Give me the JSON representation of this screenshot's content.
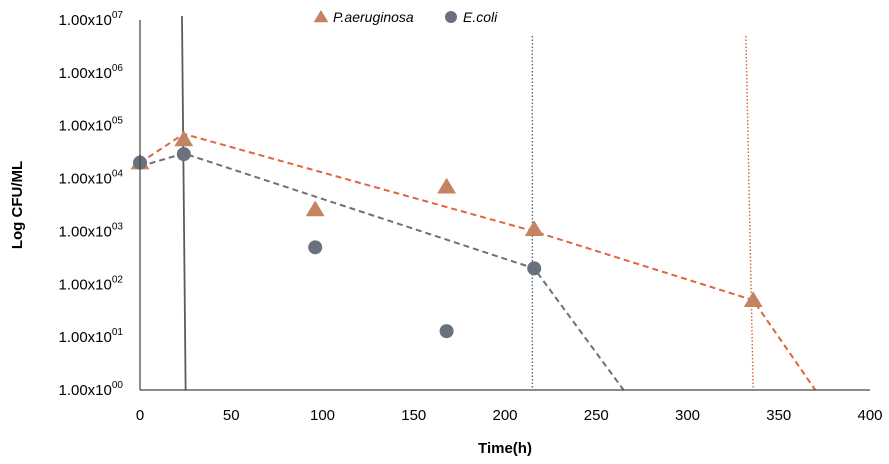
{
  "colors": {
    "p_aeruginosa": "#c48462",
    "e_coli": "#69707e",
    "p_aeruginosa_trend": "#e0643c",
    "e_coli_trend": "#707070",
    "vline_dark": "#555c66",
    "vline_blue": "#4a6a8a",
    "vline_orange": "#d4623a",
    "axis": "#444444"
  },
  "chart_data": {
    "type": "scatter",
    "title": "",
    "xlabel": "Time(h)",
    "ylabel": "Log CFU/ML",
    "xlim": [
      0,
      400
    ],
    "ylim": [
      1,
      10000000
    ],
    "y_scale": "log",
    "x_ticks": [
      0,
      50,
      100,
      150,
      200,
      250,
      300,
      350,
      400
    ],
    "y_ticks": [
      {
        "value": 1,
        "mantissa": "1.00x10",
        "exp": "00"
      },
      {
        "value": 10,
        "mantissa": "1.00x10",
        "exp": "01"
      },
      {
        "value": 100,
        "mantissa": "1.00x10",
        "exp": "02"
      },
      {
        "value": 1000,
        "mantissa": "1.00x10",
        "exp": "03"
      },
      {
        "value": 10000,
        "mantissa": "1.00x10",
        "exp": "04"
      },
      {
        "value": 100000,
        "mantissa": "1.00x10",
        "exp": "05"
      },
      {
        "value": 1000000,
        "mantissa": "1.00x10",
        "exp": "06"
      },
      {
        "value": 10000000,
        "mantissa": "1.00x10",
        "exp": "07"
      }
    ],
    "legend": {
      "placement": "top-center"
    },
    "series": [
      {
        "name": "P.aeruginosa",
        "marker": "triangle",
        "color": "#c48462",
        "points": [
          {
            "x": 0,
            "y": 20000
          },
          {
            "x": 24,
            "y": 55000
          },
          {
            "x": 96,
            "y": 2600
          },
          {
            "x": 168,
            "y": 7000
          },
          {
            "x": 216,
            "y": 1100
          },
          {
            "x": 336,
            "y": 50
          }
        ],
        "trendline": [
          {
            "x": 0,
            "y": 20000
          },
          {
            "x": 24,
            "y": 70000
          },
          {
            "x": 216,
            "y": 1000
          },
          {
            "x": 336,
            "y": 50
          },
          {
            "x": 370,
            "y": 1
          }
        ]
      },
      {
        "name": "E.coli",
        "marker": "circle",
        "color": "#69707e",
        "points": [
          {
            "x": 0,
            "y": 20000
          },
          {
            "x": 24,
            "y": 29000
          },
          {
            "x": 96,
            "y": 500
          },
          {
            "x": 168,
            "y": 13
          },
          {
            "x": 216,
            "y": 200
          }
        ],
        "trendline": [
          {
            "x": 0,
            "y": 17000
          },
          {
            "x": 24,
            "y": 30000
          },
          {
            "x": 216,
            "y": 200
          },
          {
            "x": 265,
            "y": 1
          }
        ]
      }
    ],
    "vertical_lines": [
      {
        "x_top": 23,
        "x_bottom": 25,
        "style": "solid",
        "color": "#555c66"
      },
      {
        "x_top": 215,
        "x_bottom": 215,
        "style": "dotted",
        "color": "#4a6a8a"
      },
      {
        "x_top": 332,
        "x_bottom": 336,
        "style": "dotted",
        "color": "#d4623a"
      }
    ]
  }
}
